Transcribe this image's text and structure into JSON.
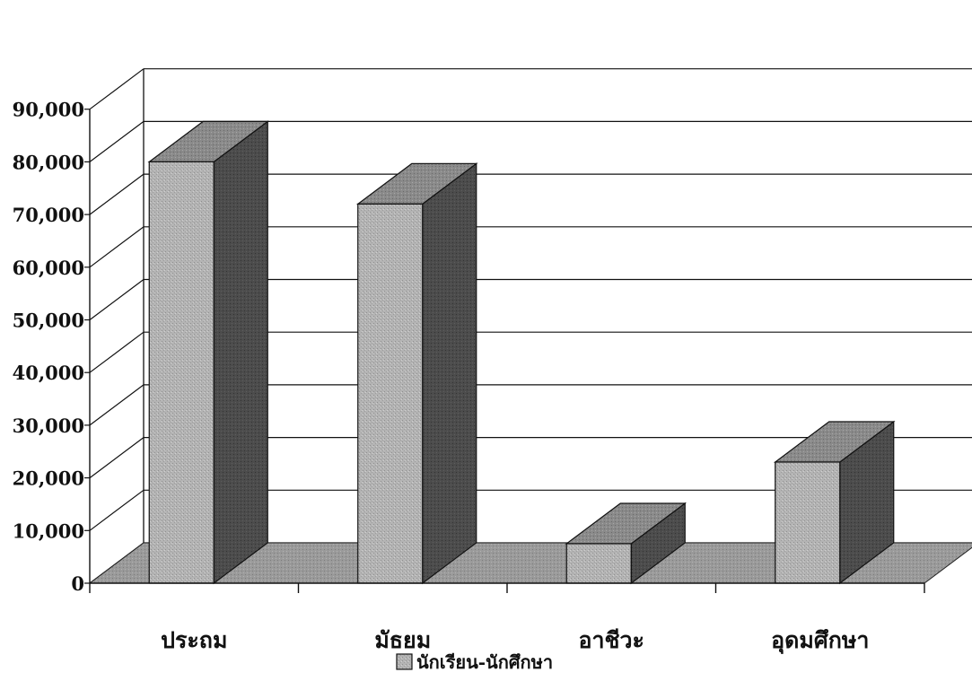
{
  "chart_data": {
    "type": "bar",
    "categories": [
      "ประถม",
      "มัธยม",
      "อาชีวะ",
      "อุดมศึกษา"
    ],
    "series": [
      {
        "name": "นักเรียน-นักศึกษา",
        "values": [
          80000,
          72000,
          7500,
          23000
        ]
      }
    ],
    "ylim": [
      0,
      90000
    ],
    "yticks": [
      0,
      10000,
      20000,
      30000,
      40000,
      50000,
      60000,
      70000,
      80000,
      90000
    ],
    "ytick_labels": [
      "0",
      "10,000",
      "20,000",
      "30,000",
      "40,000",
      "50,000",
      "60,000",
      "70,000",
      "80,000",
      "90,000"
    ],
    "grid": true,
    "style": "3d",
    "legend": "bottom",
    "title": "",
    "xlabel": "",
    "ylabel": ""
  },
  "legend": {
    "label": "นักเรียน-นักศึกษา"
  }
}
